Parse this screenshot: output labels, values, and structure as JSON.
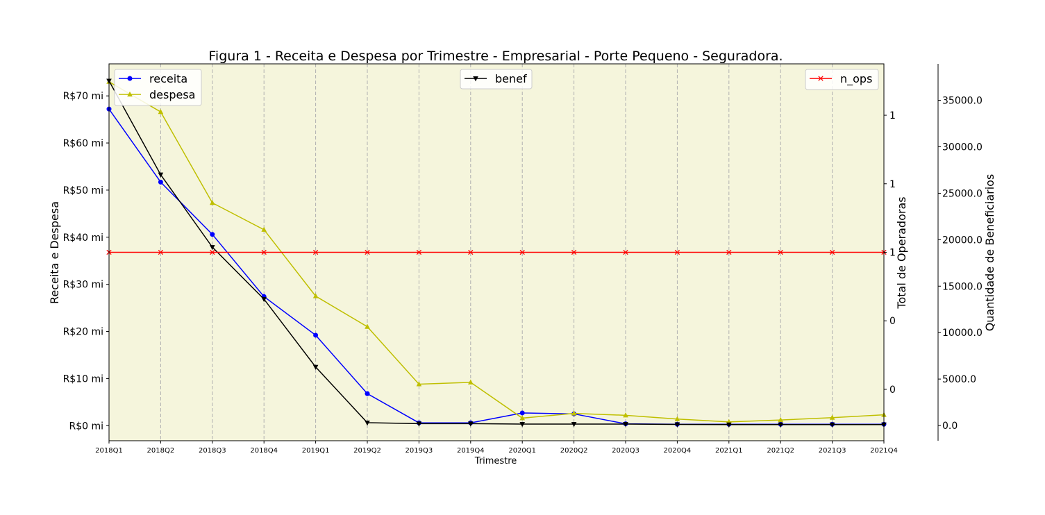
{
  "chart_data": {
    "type": "line",
    "title": "Figura 1 - Receita e Despesa por Trimestre - Empresarial - Porte Pequeno - Seguradora.",
    "xlabel": "Trimestre",
    "ylabel": "Receita e Despesa",
    "ylabel_right": "Total de Operadoras",
    "ylabel_right2": "Quantidade de Beneficiarios",
    "categories": [
      "2018Q1",
      "2018Q2",
      "2018Q3",
      "2018Q4",
      "2019Q1",
      "2019Q2",
      "2019Q3",
      "2019Q4",
      "2020Q1",
      "2020Q2",
      "2020Q3",
      "2020Q4",
      "2021Q1",
      "2021Q2",
      "2021Q3",
      "2021Q4"
    ],
    "ylim": [
      -3.2,
      76.8
    ],
    "yticks": [
      0,
      10,
      20,
      30,
      40,
      50,
      60,
      70
    ],
    "yticklabels": [
      "R$0 mi",
      "R$10 mi",
      "R$20 mi",
      "R$30 mi",
      "R$40 mi",
      "R$50 mi",
      "R$60 mi",
      "R$70 mi"
    ],
    "right_ylim": [
      0.945,
      1.055
    ],
    "right_yticks": [
      0.96,
      0.98,
      1.0,
      1.02,
      1.04
    ],
    "right_yticklabels": [
      "0",
      "0",
      "1",
      "1",
      "1"
    ],
    "right2_ylim": [
      -1640,
      38930
    ],
    "right2_yticks": [
      0,
      5000,
      10000,
      15000,
      20000,
      25000,
      30000,
      35000
    ],
    "right2_yticklabels": [
      "0.0",
      "5000.0",
      "10000.0",
      "15000.0",
      "20000.0",
      "25000.0",
      "30000.0",
      "35000.0"
    ],
    "grid": "x-dashed",
    "background": "#f5f5dc",
    "series": [
      {
        "name": "receita",
        "axis": "left",
        "color": "#0000ff",
        "marker": "circle",
        "values": [
          67.2,
          51.7,
          40.6,
          27.4,
          19.2,
          6.8,
          0.6,
          0.6,
          2.7,
          2.5,
          0.4,
          0.3,
          0.3,
          0.3,
          0.3,
          0.3
        ]
      },
      {
        "name": "despesa",
        "axis": "left",
        "color": "#bfbf00",
        "marker": "triangle-up",
        "values": [
          73.0,
          66.6,
          47.3,
          41.6,
          27.5,
          21.0,
          8.8,
          9.2,
          1.6,
          2.6,
          2.2,
          1.4,
          0.8,
          1.2,
          1.7,
          2.3
        ]
      },
      {
        "name": "benef",
        "axis": "right2",
        "color": "#000000",
        "marker": "triangle-down",
        "values": [
          37100,
          27000,
          19200,
          13600,
          6300,
          300,
          200,
          200,
          150,
          150,
          150,
          120,
          100,
          100,
          100,
          100
        ]
      },
      {
        "name": "n_ops",
        "axis": "right",
        "color": "#ff0000",
        "marker": "x",
        "values": [
          1,
          1,
          1,
          1,
          1,
          1,
          1,
          1,
          1,
          1,
          1,
          1,
          1,
          1,
          1,
          1
        ]
      }
    ],
    "legends": [
      {
        "position": "upper-left",
        "entries": [
          "receita",
          "despesa"
        ]
      },
      {
        "position": "upper-center",
        "entries": [
          "benef"
        ]
      },
      {
        "position": "upper-right",
        "entries": [
          "n_ops"
        ]
      }
    ]
  }
}
